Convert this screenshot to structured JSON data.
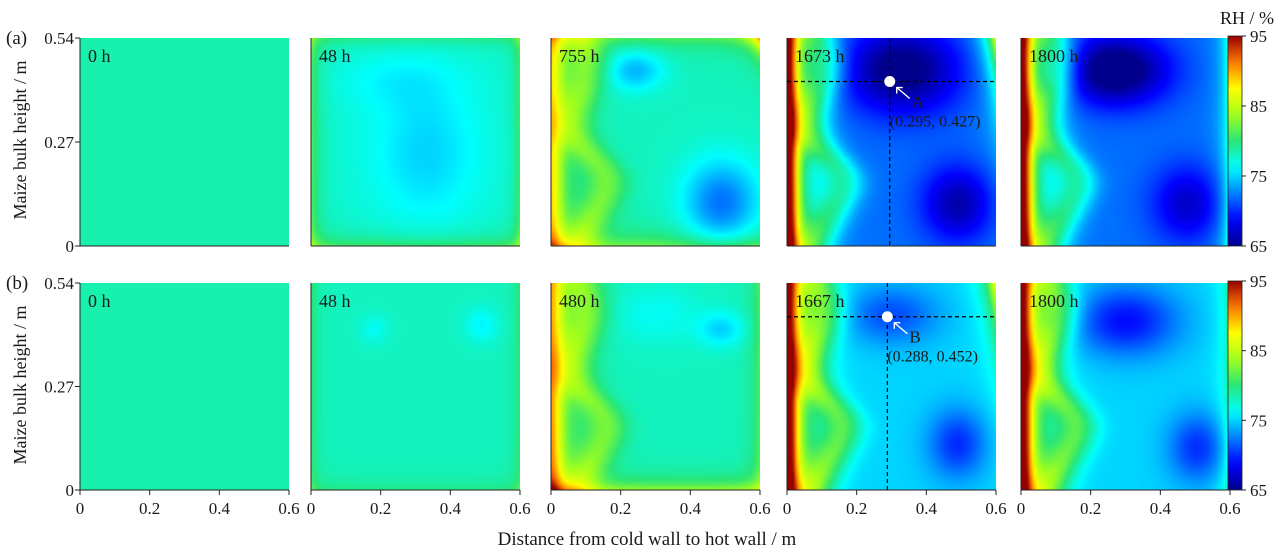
{
  "figure": {
    "xlabel": "Distance from cold wall to hot wall / m",
    "ylabel": "Maize bulk height / m",
    "colorbar_title": "RH / %"
  },
  "chart_data": {
    "type": "heatmap",
    "variable": "relative humidity",
    "unit": "%",
    "x_range": [
      0,
      0.6
    ],
    "y_range": [
      0,
      0.54
    ],
    "x_ticks": [
      "0",
      "0.2",
      "0.4",
      "0.6"
    ],
    "y_ticks": [
      "0",
      "0.27",
      "0.54"
    ],
    "color_range": [
      65,
      95
    ],
    "colorbar_ticks": [
      "65",
      "75",
      "85",
      "95"
    ],
    "rows": [
      {
        "label": "(a)",
        "panels": [
          {
            "time": "0 h",
            "profile": "uniform"
          },
          {
            "time": "48 h",
            "profile": "early"
          },
          {
            "time": "755 h",
            "profile": "mid"
          },
          {
            "time": "1673 h",
            "profile": "late",
            "marker": {
              "name": "A",
              "coords": "(0.295, 0.427)",
              "x": 0.295,
              "y": 0.427
            }
          },
          {
            "time": "1800 h",
            "profile": "final"
          }
        ]
      },
      {
        "label": "(b)",
        "panels": [
          {
            "time": "0 h",
            "profile": "uniform"
          },
          {
            "time": "48 h",
            "profile": "early_b"
          },
          {
            "time": "480 h",
            "profile": "mid_b"
          },
          {
            "time": "1667 h",
            "profile": "late_b",
            "marker": {
              "name": "B",
              "coords": "(0.288, 0.452)",
              "x": 0.288,
              "y": 0.452
            }
          },
          {
            "time": "1800 h",
            "profile": "final_b"
          }
        ]
      }
    ]
  }
}
